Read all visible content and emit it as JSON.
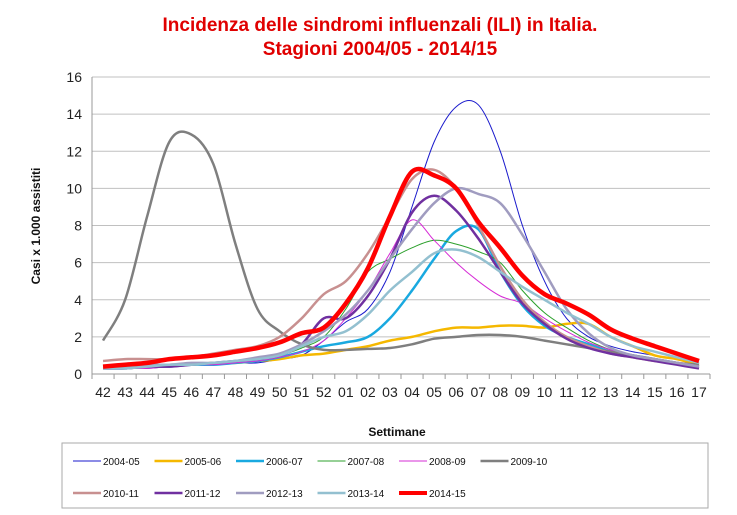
{
  "chart_data": {
    "type": "line",
    "title_line1": "Incidenza delle sindromi influenzali (ILI) in Italia.",
    "title_line2": "Stagioni 2004/05 - 2014/15",
    "xlabel": "Settimane",
    "ylabel": "Casi  x 1.000 assistiti",
    "ylim": [
      0,
      16
    ],
    "yticks": [
      0,
      2,
      4,
      6,
      8,
      10,
      12,
      14,
      16
    ],
    "grid": "horizontal",
    "legend_placement": "bottom",
    "categories": [
      "42",
      "43",
      "44",
      "45",
      "46",
      "47",
      "48",
      "49",
      "50",
      "51",
      "52",
      "01",
      "02",
      "03",
      "04",
      "05",
      "06",
      "07",
      "08",
      "09",
      "10",
      "11",
      "12",
      "13",
      "14",
      "15",
      "16",
      "17"
    ],
    "series": [
      {
        "name": "2004-05",
        "color": "#1a1acc",
        "width": 1,
        "values": [
          0.3,
          0.3,
          0.3,
          0.4,
          0.5,
          0.5,
          0.6,
          0.6,
          0.8,
          1.0,
          1.8,
          2.8,
          3.5,
          5.5,
          9.0,
          12.5,
          14.4,
          14.5,
          12.0,
          8.0,
          5.0,
          3.0,
          2.0,
          1.5,
          1.2,
          1.0,
          0.8,
          0.5
        ]
      },
      {
        "name": "2005-06",
        "color": "#f5b800",
        "width": 2.5,
        "values": [
          0.3,
          0.4,
          0.4,
          0.5,
          0.5,
          0.6,
          0.6,
          0.7,
          0.8,
          1.0,
          1.1,
          1.3,
          1.5,
          1.8,
          2.0,
          2.3,
          2.5,
          2.5,
          2.6,
          2.6,
          2.5,
          2.7,
          2.7,
          2.0,
          1.5,
          1.0,
          0.8,
          0.5
        ]
      },
      {
        "name": "2006-07",
        "color": "#19a9e0",
        "width": 2.5,
        "values": [
          0.3,
          0.3,
          0.4,
          0.4,
          0.5,
          0.5,
          0.6,
          0.7,
          0.9,
          1.2,
          1.5,
          1.7,
          2.0,
          3.0,
          4.5,
          6.2,
          7.7,
          7.8,
          5.5,
          3.7,
          2.6,
          2.0,
          1.6,
          1.2,
          1.0,
          0.8,
          0.6,
          0.4
        ]
      },
      {
        "name": "2007-08",
        "color": "#2ca02c",
        "width": 1,
        "values": [
          0.3,
          0.3,
          0.4,
          0.4,
          0.5,
          0.6,
          0.7,
          0.8,
          1.0,
          1.4,
          2.0,
          3.5,
          5.5,
          6.2,
          6.8,
          7.2,
          7.0,
          6.6,
          6.0,
          4.5,
          3.3,
          2.5,
          1.8,
          1.3,
          1.0,
          0.8,
          0.6,
          0.4
        ]
      },
      {
        "name": "2008-09",
        "color": "#d62cd6",
        "width": 1,
        "values": [
          0.3,
          0.3,
          0.3,
          0.4,
          0.5,
          0.5,
          0.6,
          0.7,
          0.9,
          1.2,
          1.8,
          3.0,
          4.5,
          6.5,
          8.3,
          7.2,
          6.0,
          5.0,
          4.2,
          3.8,
          3.0,
          2.3,
          1.7,
          1.3,
          1.0,
          0.8,
          0.6,
          0.4
        ]
      },
      {
        "name": "2009-10",
        "color": "#7f7f7f",
        "width": 2.5,
        "values": [
          1.8,
          4.0,
          8.5,
          12.5,
          12.9,
          11.3,
          7.0,
          3.5,
          2.3,
          1.6,
          1.3,
          1.3,
          1.35,
          1.4,
          1.6,
          1.9,
          2.0,
          2.1,
          2.1,
          2.0,
          1.8,
          1.6,
          1.4,
          1.2,
          1.0,
          0.8,
          0.6,
          0.5
        ]
      },
      {
        "name": "2010-11",
        "color": "#c89090",
        "width": 2.5,
        "values": [
          0.7,
          0.8,
          0.8,
          0.8,
          0.9,
          1.1,
          1.3,
          1.5,
          2.0,
          3.0,
          4.3,
          5.0,
          6.5,
          8.5,
          10.5,
          11.0,
          10.0,
          8.0,
          5.8,
          4.0,
          2.8,
          2.0,
          1.5,
          1.1,
          0.9,
          0.7,
          0.6,
          0.4
        ]
      },
      {
        "name": "2011-12",
        "color": "#7030a0",
        "width": 2.5,
        "values": [
          0.3,
          0.3,
          0.4,
          0.4,
          0.5,
          0.6,
          0.7,
          0.8,
          1.0,
          1.6,
          3.0,
          3.0,
          4.2,
          6.2,
          8.7,
          9.6,
          8.8,
          7.3,
          5.5,
          3.8,
          2.7,
          1.9,
          1.4,
          1.1,
          0.9,
          0.7,
          0.5,
          0.3
        ]
      },
      {
        "name": "2012-13",
        "color": "#a09cc0",
        "width": 2.5,
        "values": [
          0.4,
          0.4,
          0.5,
          0.5,
          0.6,
          0.6,
          0.7,
          0.9,
          1.1,
          1.6,
          2.3,
          3.2,
          4.5,
          6.2,
          7.8,
          9.2,
          10.0,
          9.7,
          9.2,
          7.5,
          5.5,
          3.5,
          2.2,
          1.4,
          1.0,
          0.8,
          0.6,
          0.4
        ]
      },
      {
        "name": "2013-14",
        "color": "#93c0d0",
        "width": 2.5,
        "values": [
          0.3,
          0.3,
          0.4,
          0.5,
          0.5,
          0.6,
          0.7,
          0.8,
          1.0,
          1.5,
          2.0,
          2.3,
          3.2,
          4.5,
          5.5,
          6.5,
          6.7,
          6.3,
          5.5,
          4.7,
          4.0,
          3.3,
          2.7,
          2.0,
          1.5,
          1.2,
          0.9,
          0.6
        ]
      },
      {
        "name": "2014-15",
        "color": "#ff0000",
        "width": 4.5,
        "values": [
          0.4,
          0.5,
          0.6,
          0.8,
          0.9,
          1.0,
          1.2,
          1.4,
          1.7,
          2.2,
          2.5,
          3.8,
          5.7,
          8.5,
          10.9,
          10.7,
          10.0,
          8.2,
          6.8,
          5.3,
          4.3,
          3.8,
          3.2,
          2.4,
          1.9,
          1.5,
          1.1,
          0.7
        ]
      }
    ]
  }
}
